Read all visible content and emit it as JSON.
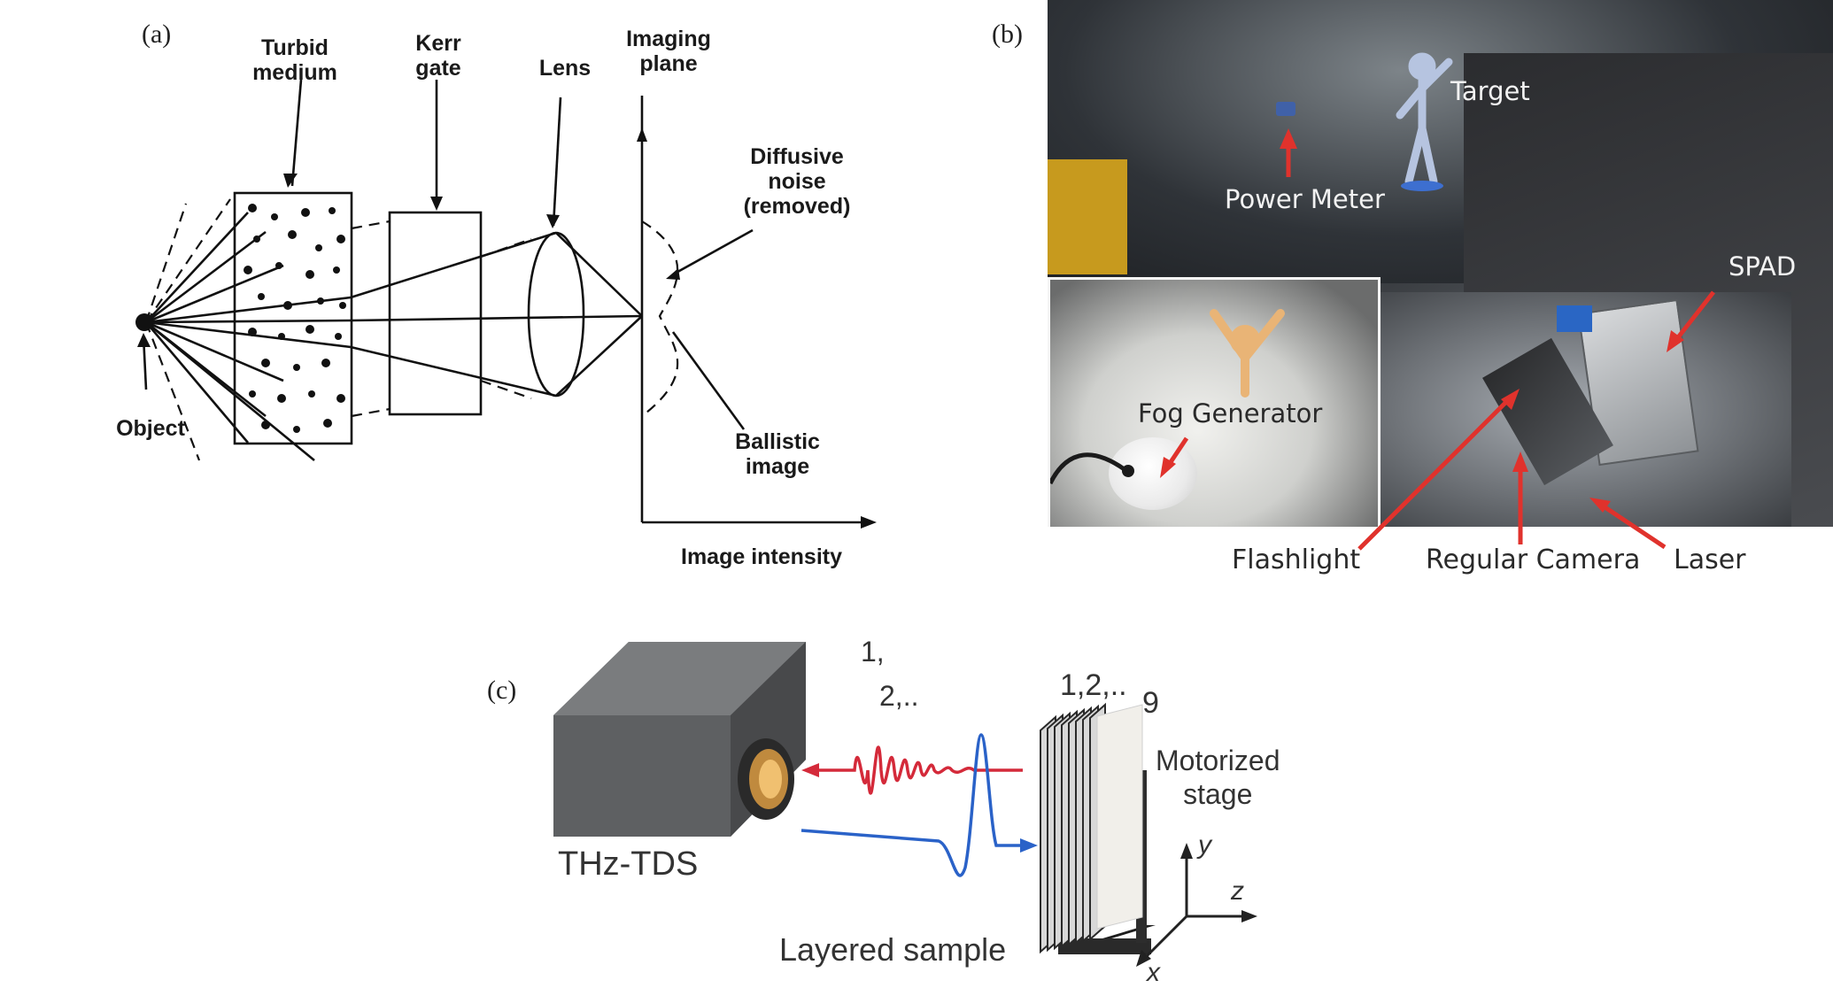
{
  "panel_a": {
    "tag": "(a)",
    "labels": {
      "turbid": "Turbid\nmedium",
      "kerr": "Kerr\ngate",
      "lens": "Lens",
      "imaging": "Imaging\nplane",
      "diffusive": "Diffusive\nnoise\n(removed)",
      "ballistic": "Ballistic\nimage",
      "object": "Object",
      "intensity": "Image intensity"
    }
  },
  "panel_b": {
    "tag": "(b)",
    "labels": {
      "target": "Target",
      "power_meter": "Power Meter",
      "spad": "SPAD",
      "fog": "Fog Generator",
      "flashlight": "Flashlight",
      "regular_camera": "Regular Camera",
      "laser": "Laser"
    },
    "arrow_color": "#e0322c"
  },
  "panel_c": {
    "tag": "(c)",
    "labels": {
      "thz": "THz-TDS",
      "layered": "Layered sample",
      "motorized": "Motorized\nstage",
      "order_a": "1,",
      "order_b": "2,..",
      "layers": "1,2,..",
      "nine": "9",
      "axis_x": "x",
      "axis_y": "y",
      "axis_z": "z"
    },
    "reflected_color": "#d42a3a",
    "incident_color": "#2a62c8"
  }
}
